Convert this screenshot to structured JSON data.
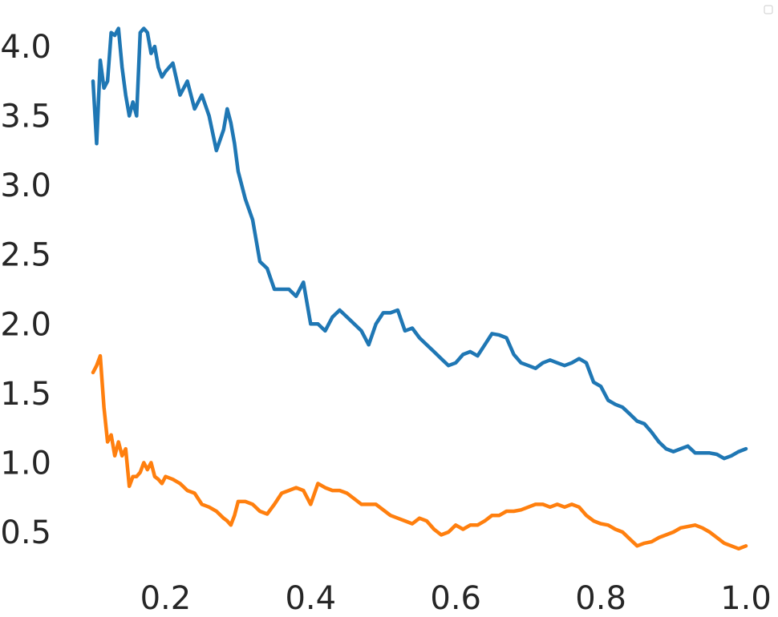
{
  "chart_data": {
    "type": "line",
    "title": "",
    "xlabel": "",
    "ylabel": "",
    "xlim": [
      0.1,
      1.0
    ],
    "ylim": [
      0.3,
      4.2
    ],
    "grid": false,
    "legend": "top-right (empty)",
    "x_ticks": [
      0.2,
      0.4,
      0.6,
      0.8,
      1.0
    ],
    "x_tick_labels": [
      "0.2",
      "0.4",
      "0.6",
      "0.8",
      "1.0"
    ],
    "y_ticks": [
      0.5,
      1.0,
      1.5,
      2.0,
      2.5,
      3.0,
      3.5,
      4.0
    ],
    "y_tick_labels": [
      "0.5",
      "1.0",
      "1.5",
      "2.0",
      "2.5",
      "3.0",
      "3.5",
      "4.0"
    ],
    "series": [
      {
        "color": "#1f77b4",
        "x": [
          0.1,
          0.105,
          0.11,
          0.115,
          0.12,
          0.125,
          0.13,
          0.135,
          0.14,
          0.145,
          0.15,
          0.155,
          0.16,
          0.165,
          0.17,
          0.175,
          0.18,
          0.185,
          0.19,
          0.195,
          0.2,
          0.21,
          0.22,
          0.23,
          0.24,
          0.25,
          0.26,
          0.27,
          0.28,
          0.285,
          0.29,
          0.295,
          0.3,
          0.31,
          0.32,
          0.33,
          0.34,
          0.35,
          0.36,
          0.37,
          0.38,
          0.39,
          0.4,
          0.41,
          0.42,
          0.43,
          0.44,
          0.45,
          0.46,
          0.47,
          0.48,
          0.49,
          0.5,
          0.51,
          0.52,
          0.53,
          0.54,
          0.55,
          0.56,
          0.57,
          0.58,
          0.59,
          0.6,
          0.61,
          0.62,
          0.63,
          0.64,
          0.65,
          0.66,
          0.67,
          0.68,
          0.69,
          0.7,
          0.71,
          0.72,
          0.73,
          0.74,
          0.75,
          0.76,
          0.77,
          0.78,
          0.79,
          0.8,
          0.81,
          0.82,
          0.83,
          0.84,
          0.85,
          0.86,
          0.87,
          0.88,
          0.89,
          0.9,
          0.91,
          0.92,
          0.93,
          0.94,
          0.95,
          0.96,
          0.97,
          0.98,
          0.99,
          1.0
        ],
        "y": [
          3.75,
          3.3,
          3.9,
          3.7,
          3.75,
          4.1,
          4.08,
          4.13,
          3.85,
          3.65,
          3.5,
          3.6,
          3.5,
          4.1,
          4.13,
          4.1,
          3.95,
          4.0,
          3.85,
          3.78,
          3.82,
          3.88,
          3.65,
          3.75,
          3.55,
          3.65,
          3.5,
          3.25,
          3.4,
          3.55,
          3.45,
          3.3,
          3.1,
          2.9,
          2.75,
          2.45,
          2.4,
          2.25,
          2.25,
          2.25,
          2.2,
          2.3,
          2.0,
          2.0,
          1.95,
          2.05,
          2.1,
          2.05,
          2.0,
          1.95,
          1.85,
          2.0,
          2.08,
          2.08,
          2.1,
          1.95,
          1.97,
          1.9,
          1.85,
          1.8,
          1.75,
          1.7,
          1.72,
          1.78,
          1.8,
          1.77,
          1.85,
          1.93,
          1.92,
          1.9,
          1.78,
          1.72,
          1.7,
          1.68,
          1.72,
          1.74,
          1.72,
          1.7,
          1.72,
          1.75,
          1.72,
          1.58,
          1.55,
          1.45,
          1.42,
          1.4,
          1.35,
          1.3,
          1.28,
          1.22,
          1.15,
          1.1,
          1.08,
          1.1,
          1.12,
          1.07,
          1.07,
          1.07,
          1.06,
          1.03,
          1.05,
          1.08,
          1.1
        ]
      },
      {
        "color": "#ff7f0e",
        "x": [
          0.1,
          0.105,
          0.11,
          0.115,
          0.12,
          0.125,
          0.13,
          0.135,
          0.14,
          0.145,
          0.15,
          0.155,
          0.16,
          0.165,
          0.17,
          0.175,
          0.18,
          0.185,
          0.19,
          0.195,
          0.2,
          0.21,
          0.22,
          0.23,
          0.24,
          0.25,
          0.26,
          0.27,
          0.28,
          0.285,
          0.29,
          0.295,
          0.3,
          0.31,
          0.32,
          0.33,
          0.34,
          0.35,
          0.36,
          0.37,
          0.38,
          0.39,
          0.4,
          0.41,
          0.42,
          0.43,
          0.44,
          0.45,
          0.46,
          0.47,
          0.48,
          0.49,
          0.5,
          0.51,
          0.52,
          0.53,
          0.54,
          0.55,
          0.56,
          0.57,
          0.58,
          0.59,
          0.6,
          0.61,
          0.62,
          0.63,
          0.64,
          0.65,
          0.66,
          0.67,
          0.68,
          0.69,
          0.7,
          0.71,
          0.72,
          0.73,
          0.74,
          0.75,
          0.76,
          0.77,
          0.78,
          0.79,
          0.8,
          0.81,
          0.82,
          0.83,
          0.84,
          0.85,
          0.86,
          0.87,
          0.88,
          0.89,
          0.9,
          0.91,
          0.92,
          0.93,
          0.94,
          0.95,
          0.96,
          0.97,
          0.98,
          0.99,
          1.0
        ],
        "y": [
          1.65,
          1.7,
          1.77,
          1.4,
          1.15,
          1.2,
          1.05,
          1.15,
          1.05,
          1.1,
          0.83,
          0.9,
          0.9,
          0.93,
          1.0,
          0.95,
          1.0,
          0.9,
          0.88,
          0.85,
          0.9,
          0.88,
          0.85,
          0.8,
          0.78,
          0.7,
          0.68,
          0.65,
          0.6,
          0.58,
          0.55,
          0.62,
          0.72,
          0.72,
          0.7,
          0.65,
          0.63,
          0.7,
          0.78,
          0.8,
          0.82,
          0.8,
          0.7,
          0.85,
          0.82,
          0.8,
          0.8,
          0.78,
          0.74,
          0.7,
          0.7,
          0.7,
          0.66,
          0.62,
          0.6,
          0.58,
          0.56,
          0.6,
          0.58,
          0.52,
          0.48,
          0.5,
          0.55,
          0.52,
          0.55,
          0.55,
          0.58,
          0.62,
          0.62,
          0.65,
          0.65,
          0.66,
          0.68,
          0.7,
          0.7,
          0.68,
          0.7,
          0.68,
          0.7,
          0.68,
          0.62,
          0.58,
          0.56,
          0.55,
          0.52,
          0.5,
          0.45,
          0.4,
          0.42,
          0.43,
          0.46,
          0.48,
          0.5,
          0.53,
          0.54,
          0.55,
          0.53,
          0.5,
          0.46,
          0.42,
          0.4,
          0.38,
          0.4
        ]
      }
    ]
  }
}
